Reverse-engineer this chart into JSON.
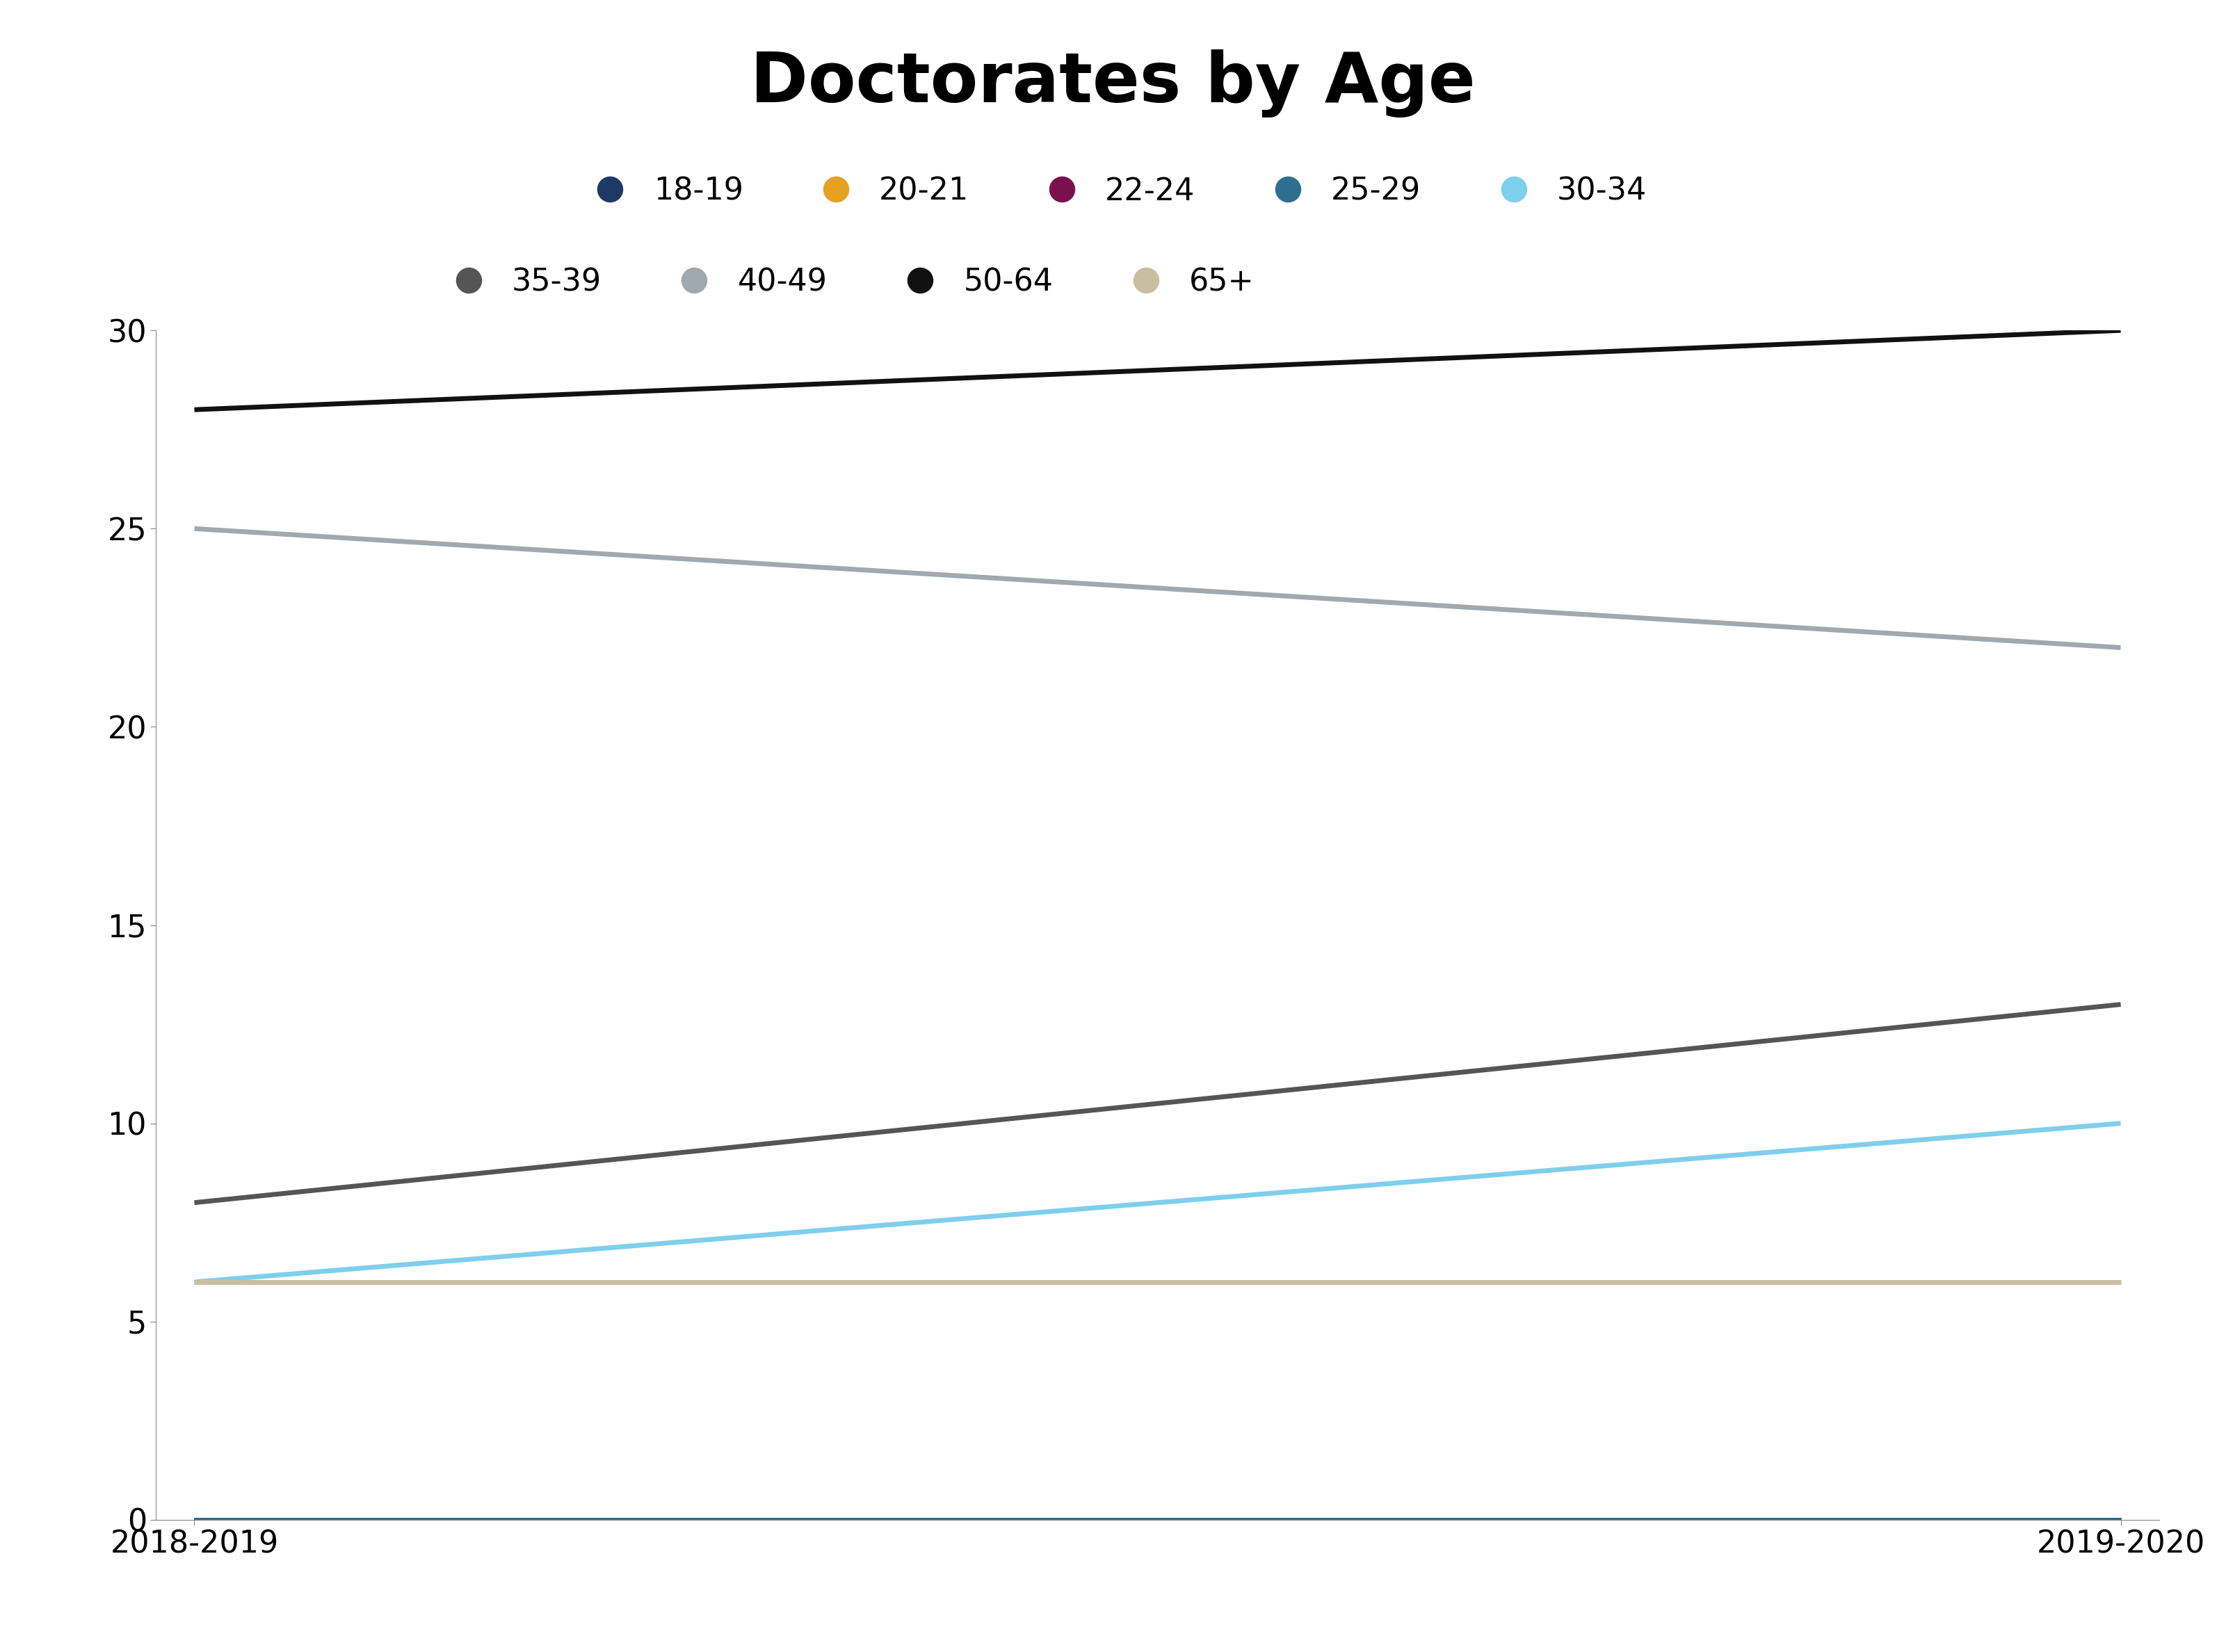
{
  "title": "Doctorates by Age",
  "x_labels": [
    "2018-2019",
    "2019-2020"
  ],
  "x_values": [
    0,
    1
  ],
  "series": [
    {
      "label": "18-19",
      "color": "#1f3864",
      "values": [
        0,
        0
      ]
    },
    {
      "label": "20-21",
      "color": "#e8a020",
      "values": [
        0,
        0
      ]
    },
    {
      "label": "22-24",
      "color": "#7b1050",
      "values": [
        0,
        0
      ]
    },
    {
      "label": "25-29",
      "color": "#2e6e8e",
      "values": [
        0,
        0
      ]
    },
    {
      "label": "30-34",
      "color": "#7ecfec",
      "values": [
        6,
        10
      ]
    },
    {
      "label": "35-39",
      "color": "#555555",
      "values": [
        8,
        13
      ]
    },
    {
      "label": "40-49",
      "color": "#a0a8b0",
      "values": [
        25,
        22
      ]
    },
    {
      "label": "50-64",
      "color": "#111111",
      "values": [
        28,
        30
      ]
    },
    {
      "label": "65+",
      "color": "#c8bfa0",
      "values": [
        6,
        6
      ]
    }
  ],
  "ylim": [
    0,
    30
  ],
  "yticks": [
    0,
    5,
    10,
    15,
    20,
    25,
    30
  ],
  "title_fontsize": 72,
  "legend_fontsize": 32,
  "tick_fontsize": 32,
  "background_color": "#ffffff",
  "line_width": 5.0
}
